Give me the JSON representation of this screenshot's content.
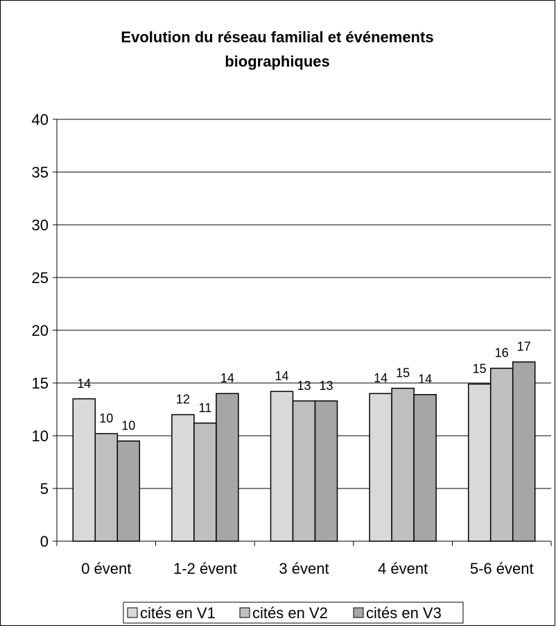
{
  "chart_data": {
    "type": "bar",
    "title_line1": "Evolution du réseau familial et événements",
    "title_line2": "biographiques",
    "xlabel": "",
    "ylabel": "",
    "categories": [
      "0 évent",
      "1-2 évent",
      "3 évent",
      "4 évent",
      "5-6 évent"
    ],
    "series": [
      {
        "name": "cités en V1",
        "values": [
          13.5,
          12.0,
          14.2,
          14.0,
          14.9
        ],
        "labels": [
          "14",
          "12",
          "14",
          "14",
          "15"
        ],
        "color": "#d9d9d9"
      },
      {
        "name": "cités en V2",
        "values": [
          10.2,
          11.2,
          13.3,
          14.5,
          16.4
        ],
        "labels": [
          "10",
          "11",
          "13",
          "15",
          "16"
        ],
        "color": "#bfbfbf"
      },
      {
        "name": "cités en V3",
        "values": [
          9.5,
          14.0,
          13.3,
          13.9,
          17.0
        ],
        "labels": [
          "10",
          "14",
          "13",
          "14",
          "17"
        ],
        "color": "#a6a6a6"
      }
    ],
    "ylim": [
      0,
      40
    ],
    "yticks": [
      0,
      5,
      10,
      15,
      20,
      25,
      30,
      35,
      40
    ],
    "grid": true,
    "legend_position": "bottom"
  }
}
